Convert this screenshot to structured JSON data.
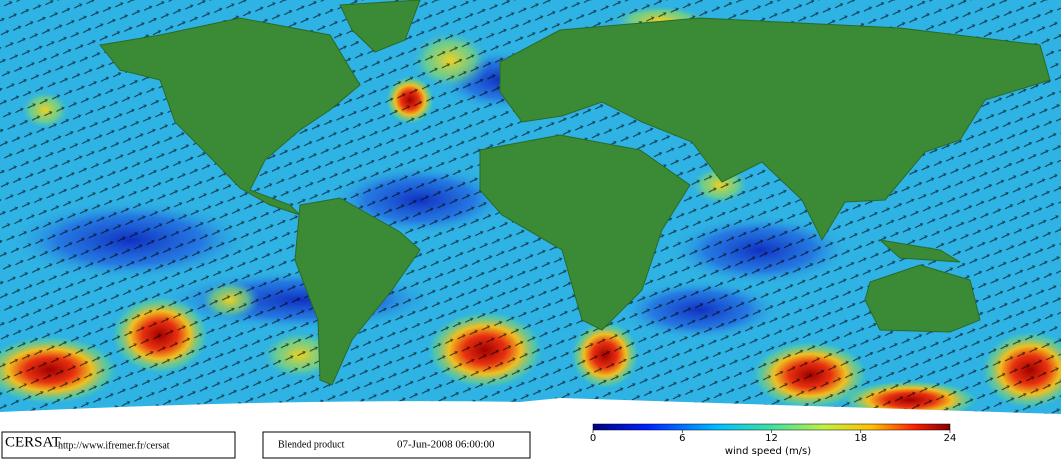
{
  "footer": {
    "logo": "CERSAT",
    "url": "http://www.ifremer.fr/cersat",
    "product": "Blended product",
    "timestamp": "07-Jun-2008 06:00:00"
  },
  "colorbar": {
    "label": "wind speed (m/s)",
    "lim": [
      0,
      24
    ],
    "ticks": [
      0,
      6,
      12,
      18,
      24
    ]
  }
}
